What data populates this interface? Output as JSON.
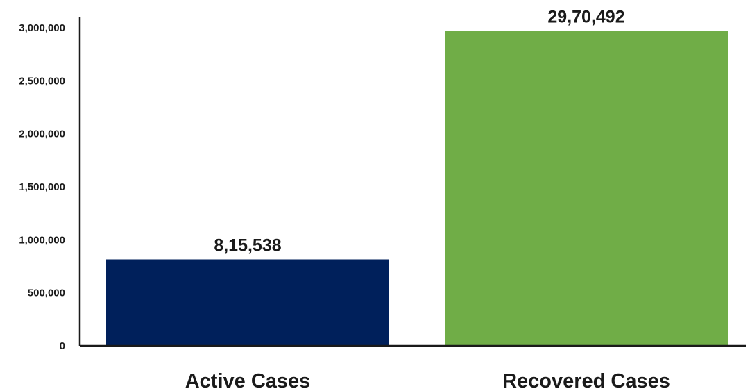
{
  "chart_data": {
    "type": "bar",
    "categories": [
      "Active Cases",
      "Recovered Cases"
    ],
    "values": [
      815538,
      2970492
    ],
    "value_labels": [
      "8,15,538",
      "29,70,492"
    ],
    "colors": [
      "#00205b",
      "#70ad47"
    ],
    "ylim": [
      0,
      3000000
    ],
    "yticks": [
      0,
      500000,
      1000000,
      1500000,
      2000000,
      2500000,
      3000000
    ],
    "ytick_labels": [
      "0",
      "500,000",
      "1,000,000",
      "1,500,000",
      "2,000,000",
      "2,500,000",
      "3,000,000"
    ],
    "grid": false,
    "legend": "none"
  }
}
